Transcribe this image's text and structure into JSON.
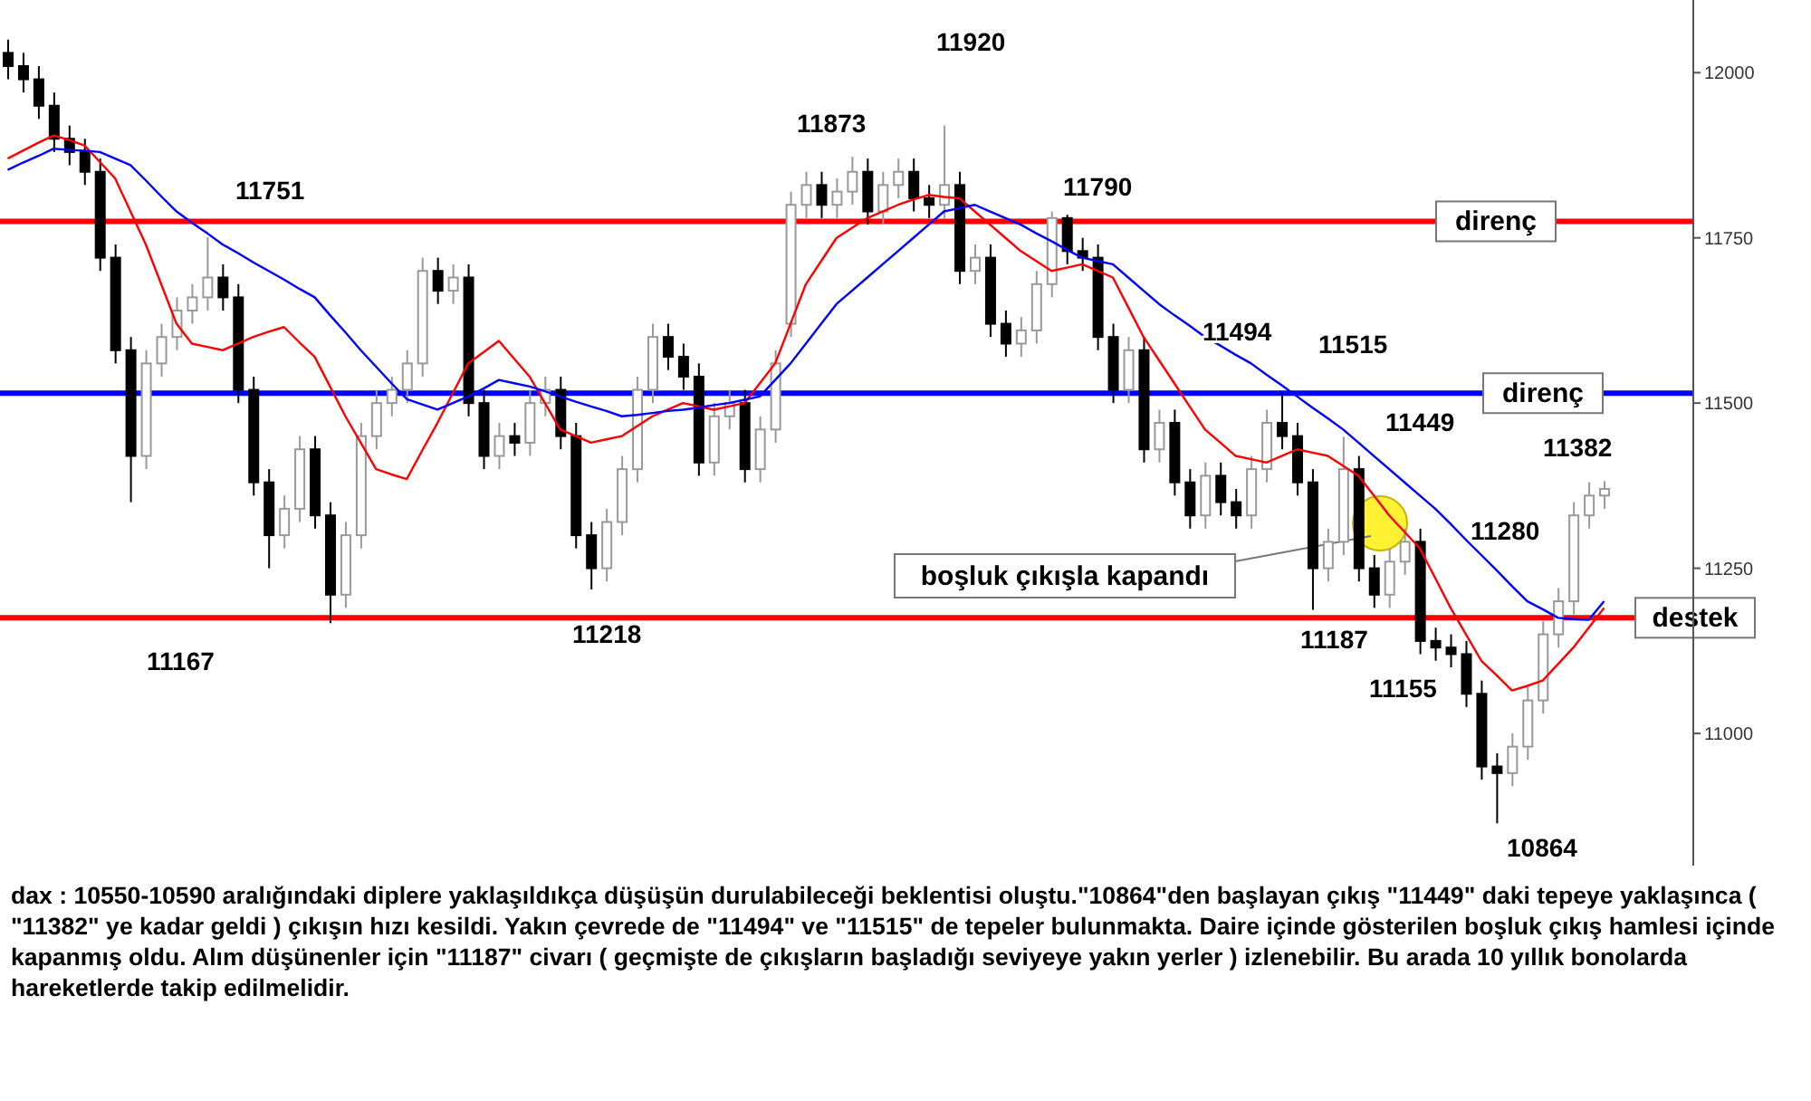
{
  "chart_data": {
    "type": "candlestick",
    "categories": [
      null,
      null,
      null,
      null,
      null,
      null,
      null,
      null,
      null,
      null,
      null,
      null,
      null,
      null,
      null,
      null,
      null,
      null,
      null,
      null,
      null,
      null,
      null,
      null,
      null,
      null,
      null,
      null,
      null,
      null,
      null,
      null,
      null,
      null,
      null,
      null,
      null,
      null,
      null,
      null,
      null,
      null,
      null,
      null,
      null,
      null,
      null,
      null,
      null,
      null,
      null,
      null,
      null,
      null,
      null,
      null,
      null,
      null,
      null,
      null,
      null,
      null,
      null,
      null,
      null,
      null,
      null,
      null,
      null,
      null,
      null,
      null,
      null,
      null,
      null,
      null,
      null,
      null,
      null,
      null,
      null,
      null,
      null,
      null,
      null,
      null,
      null,
      null,
      null,
      null,
      null,
      null,
      null,
      null,
      null,
      null,
      null,
      null,
      null,
      null,
      null,
      null,
      null,
      null,
      null
    ],
    "ohlc": [
      [
        12030,
        12050,
        11990,
        12010
      ],
      [
        12010,
        12030,
        11970,
        11990
      ],
      [
        11990,
        12010,
        11930,
        11950
      ],
      [
        11950,
        11970,
        11880,
        11900
      ],
      [
        11900,
        11920,
        11860,
        11880
      ],
      [
        11880,
        11900,
        11830,
        11850
      ],
      [
        11850,
        11870,
        11700,
        11720
      ],
      [
        11720,
        11740,
        11560,
        11580
      ],
      [
        11580,
        11600,
        11350,
        11420
      ],
      [
        11420,
        11580,
        11400,
        11560
      ],
      [
        11560,
        11620,
        11540,
        11600
      ],
      [
        11600,
        11660,
        11580,
        11640
      ],
      [
        11640,
        11680,
        11620,
        11660
      ],
      [
        11660,
        11751,
        11640,
        11690
      ],
      [
        11690,
        11710,
        11640,
        11660
      ],
      [
        11660,
        11680,
        11500,
        11520
      ],
      [
        11520,
        11540,
        11360,
        11380
      ],
      [
        11380,
        11400,
        11250,
        11300
      ],
      [
        11300,
        11360,
        11280,
        11340
      ],
      [
        11340,
        11450,
        11320,
        11430
      ],
      [
        11430,
        11450,
        11310,
        11330
      ],
      [
        11330,
        11350,
        11167,
        11210
      ],
      [
        11210,
        11320,
        11190,
        11300
      ],
      [
        11300,
        11470,
        11280,
        11450
      ],
      [
        11450,
        11520,
        11430,
        11500
      ],
      [
        11500,
        11540,
        11480,
        11520
      ],
      [
        11520,
        11580,
        11500,
        11560
      ],
      [
        11560,
        11720,
        11540,
        11700
      ],
      [
        11700,
        11720,
        11650,
        11670
      ],
      [
        11670,
        11710,
        11650,
        11690
      ],
      [
        11690,
        11710,
        11480,
        11500
      ],
      [
        11500,
        11520,
        11400,
        11420
      ],
      [
        11420,
        11470,
        11400,
        11450
      ],
      [
        11450,
        11470,
        11420,
        11440
      ],
      [
        11440,
        11520,
        11420,
        11500
      ],
      [
        11500,
        11540,
        11480,
        11520
      ],
      [
        11520,
        11540,
        11430,
        11450
      ],
      [
        11450,
        11470,
        11280,
        11300
      ],
      [
        11300,
        11320,
        11218,
        11250
      ],
      [
        11250,
        11340,
        11230,
        11320
      ],
      [
        11320,
        11420,
        11300,
        11400
      ],
      [
        11400,
        11540,
        11380,
        11520
      ],
      [
        11520,
        11620,
        11500,
        11600
      ],
      [
        11600,
        11620,
        11550,
        11570
      ],
      [
        11570,
        11590,
        11520,
        11540
      ],
      [
        11540,
        11560,
        11390,
        11410
      ],
      [
        11410,
        11500,
        11390,
        11480
      ],
      [
        11480,
        11520,
        11460,
        11500
      ],
      [
        11500,
        11520,
        11380,
        11400
      ],
      [
        11400,
        11480,
        11380,
        11460
      ],
      [
        11460,
        11580,
        11440,
        11560
      ],
      [
        11620,
        11820,
        11600,
        11800
      ],
      [
        11800,
        11850,
        11780,
        11830
      ],
      [
        11830,
        11850,
        11780,
        11800
      ],
      [
        11800,
        11840,
        11780,
        11820
      ],
      [
        11820,
        11873,
        11800,
        11850
      ],
      [
        11850,
        11870,
        11770,
        11790
      ],
      [
        11790,
        11850,
        11770,
        11830
      ],
      [
        11830,
        11870,
        11810,
        11850
      ],
      [
        11850,
        11870,
        11790,
        11810
      ],
      [
        11810,
        11830,
        11780,
        11800
      ],
      [
        11800,
        11920,
        11780,
        11830
      ],
      [
        11830,
        11850,
        11680,
        11700
      ],
      [
        11700,
        11740,
        11680,
        11720
      ],
      [
        11720,
        11740,
        11600,
        11620
      ],
      [
        11620,
        11640,
        11570,
        11590
      ],
      [
        11590,
        11630,
        11570,
        11610
      ],
      [
        11610,
        11700,
        11590,
        11680
      ],
      [
        11680,
        11790,
        11660,
        11780
      ],
      [
        11780,
        11785,
        11710,
        11730
      ],
      [
        11730,
        11750,
        11700,
        11720
      ],
      [
        11720,
        11740,
        11580,
        11600
      ],
      [
        11600,
        11620,
        11500,
        11520
      ],
      [
        11520,
        11600,
        11500,
        11580
      ],
      [
        11580,
        11600,
        11410,
        11430
      ],
      [
        11430,
        11490,
        11410,
        11470
      ],
      [
        11470,
        11490,
        11360,
        11380
      ],
      [
        11380,
        11400,
        11310,
        11330
      ],
      [
        11330,
        11410,
        11310,
        11390
      ],
      [
        11390,
        11410,
        11330,
        11350
      ],
      [
        11350,
        11370,
        11310,
        11330
      ],
      [
        11330,
        11420,
        11310,
        11400
      ],
      [
        11400,
        11490,
        11380,
        11470
      ],
      [
        11470,
        11515,
        11430,
        11450
      ],
      [
        11450,
        11470,
        11360,
        11380
      ],
      [
        11380,
        11400,
        11187,
        11250
      ],
      [
        11250,
        11310,
        11230,
        11290
      ],
      [
        11290,
        11449,
        11270,
        11400
      ],
      [
        11400,
        11420,
        11230,
        11250
      ],
      [
        11250,
        11270,
        11190,
        11210
      ],
      [
        11210,
        11280,
        11190,
        11260
      ],
      [
        11260,
        11310,
        11240,
        11290
      ],
      [
        11290,
        11310,
        11120,
        11140
      ],
      [
        11140,
        11160,
        11110,
        11130
      ],
      [
        11130,
        11150,
        11100,
        11120
      ],
      [
        11120,
        11140,
        11040,
        11060
      ],
      [
        11060,
        11080,
        10930,
        10950
      ],
      [
        10950,
        10970,
        10864,
        10940
      ],
      [
        10940,
        11000,
        10920,
        10980
      ],
      [
        10980,
        11070,
        10960,
        11050
      ],
      [
        11050,
        11170,
        11030,
        11150
      ],
      [
        11150,
        11220,
        11130,
        11200
      ],
      [
        11200,
        11350,
        11180,
        11330
      ],
      [
        11330,
        11380,
        11310,
        11360
      ],
      [
        11360,
        11382,
        11340,
        11370
      ]
    ],
    "series": [
      {
        "type": "line",
        "color": "#ff0000",
        "values": [
          11870,
          11882,
          11894,
          11905,
          11898,
          11890,
          11865,
          11840,
          11790,
          11740,
          11680,
          11620,
          11590,
          11585,
          11580,
          11590,
          11600,
          11608,
          11615,
          11592,
          11570,
          11525,
          11480,
          11440,
          11400,
          11392,
          11385,
          11428,
          11470,
          11515,
          11560,
          11577,
          11594,
          11567,
          11540,
          11500,
          11460,
          11450,
          11440,
          11445,
          11450,
          11465,
          11480,
          11490,
          11500,
          11495,
          11490,
          11495,
          11500,
          11530,
          11560,
          11620,
          11680,
          11715,
          11750,
          11765,
          11780,
          11790,
          11800,
          11808,
          11815,
          11812,
          11810,
          11790,
          11770,
          11750,
          11730,
          11715,
          11700,
          11705,
          11710,
          11700,
          11690,
          11645,
          11600,
          11565,
          11530,
          11495,
          11460,
          11440,
          11420,
          11415,
          11410,
          11420,
          11430,
          11425,
          11420,
          11405,
          11390,
          11360,
          11330,
          11305,
          11280,
          11235,
          11190,
          11150,
          11110,
          11088,
          11065,
          11072,
          11080,
          11105,
          11130,
          11160,
          11190
        ]
      },
      {
        "type": "line",
        "color": "#0000ff",
        "values": [
          11853,
          11864,
          11874,
          11885,
          11883,
          11882,
          11880,
          11870,
          11860,
          11837,
          11813,
          11790,
          11773,
          11757,
          11740,
          11727,
          11713,
          11700,
          11687,
          11673,
          11660,
          11633,
          11607,
          11580,
          11555,
          11530,
          11506,
          11498,
          11490,
          11500,
          11510,
          11522,
          11535,
          11530,
          11525,
          11518,
          11510,
          11502,
          11495,
          11488,
          11480,
          11482,
          11485,
          11488,
          11490,
          11493,
          11497,
          11500,
          11505,
          11510,
          11535,
          11560,
          11590,
          11620,
          11650,
          11670,
          11690,
          11710,
          11730,
          11750,
          11770,
          11790,
          11795,
          11800,
          11790,
          11780,
          11770,
          11757,
          11745,
          11732,
          11720,
          11715,
          11710,
          11690,
          11670,
          11650,
          11633,
          11617,
          11600,
          11587,
          11573,
          11560,
          11543,
          11527,
          11510,
          11493,
          11477,
          11460,
          11440,
          11420,
          11400,
          11380,
          11360,
          11340,
          11317,
          11293,
          11270,
          11247,
          11223,
          11200,
          11188,
          11175,
          11173,
          11172,
          11200
        ]
      }
    ],
    "ylim": [
      10800,
      12110
    ],
    "yticks": [
      11000,
      11250,
      11500,
      11750,
      12000
    ],
    "tick_labels": "y",
    "grid": false,
    "line_style": "solid",
    "marker": "none",
    "ref_lines": [
      {
        "axis": "y",
        "value": 11775,
        "label": "direnç",
        "color": "#ff0000"
      },
      {
        "axis": "y",
        "value": 11515,
        "label": "direnç",
        "color": "#0000ff"
      },
      {
        "axis": "y",
        "value": 11175,
        "label": "destek",
        "color": "#ff0000"
      }
    ],
    "annotations": [
      "11751",
      "11873",
      "11920",
      "11790",
      "11494",
      "11515",
      "11449",
      "11382",
      "11280",
      "11187",
      "11155",
      "10864",
      "11167",
      "11218",
      "boşluk çıkışla kapandı",
      "dax : 10550-10590 aralığındaki diplere yaklaşıldıkça düşüşün durulabileceği beklentisi oluştu.\"10864\"den başlayan çıkış \"11449\" daki tepeye yaklaşınca ( \"11382\" ye kadar geldi ) çıkışın hızı kesildi. Yakın çevrede de \"11494\" ve \"11515\" de tepeler bulunmakta. Daire içinde gösterilen boşluk çıkış hamlesi içinde kapanmış oldu. Alım düşünenler için \"11187\" civarı ( geçmişte de çıkışların başladığı seviyeye yakın yerler ) izlenebilir. Bu arada 10 yıllık bonolarda hareketlerde takip edilmelidir."
    ]
  }
}
